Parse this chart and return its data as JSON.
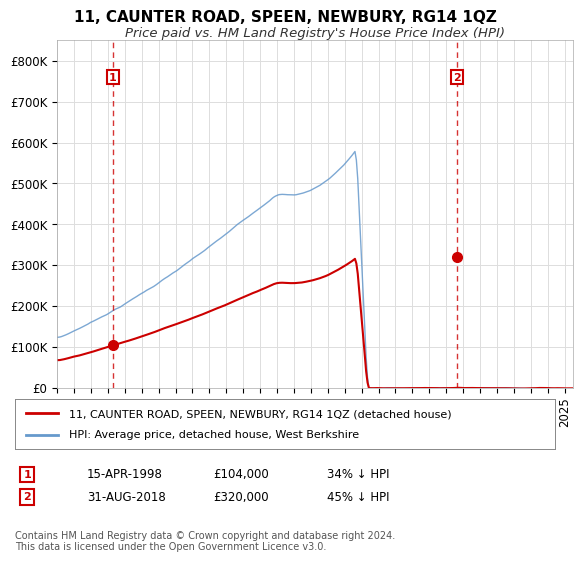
{
  "title": "11, CAUNTER ROAD, SPEEN, NEWBURY, RG14 1QZ",
  "subtitle": "Price paid vs. HM Land Registry's House Price Index (HPI)",
  "xlabel": "",
  "ylabel": "",
  "ylim": [
    0,
    850000
  ],
  "yticks": [
    0,
    100000,
    200000,
    300000,
    400000,
    500000,
    600000,
    700000,
    800000
  ],
  "ytick_labels": [
    "£0",
    "£100K",
    "£200K",
    "£300K",
    "£400K",
    "£500K",
    "£600K",
    "£700K",
    "£800K"
  ],
  "sale1_date": 1998.29,
  "sale1_price": 104000,
  "sale1_label": "1",
  "sale2_date": 2018.66,
  "sale2_price": 320000,
  "sale2_label": "2",
  "sale_color": "#cc0000",
  "hpi_color": "#6699cc",
  "vline_color": "#cc0000",
  "legend_sale_label": "11, CAUNTER ROAD, SPEEN, NEWBURY, RG14 1QZ (detached house)",
  "legend_hpi_label": "HPI: Average price, detached house, West Berkshire",
  "table_row1": [
    "1",
    "15-APR-1998",
    "£104,000",
    "34% ↓ HPI"
  ],
  "table_row2": [
    "2",
    "31-AUG-2018",
    "£320,000",
    "45% ↓ HPI"
  ],
  "footnote": "Contains HM Land Registry data © Crown copyright and database right 2024.\nThis data is licensed under the Open Government Licence v3.0.",
  "background_color": "#ffffff",
  "grid_color": "#dddddd",
  "title_fontsize": 11,
  "subtitle_fontsize": 9.5,
  "tick_fontsize": 8.5
}
